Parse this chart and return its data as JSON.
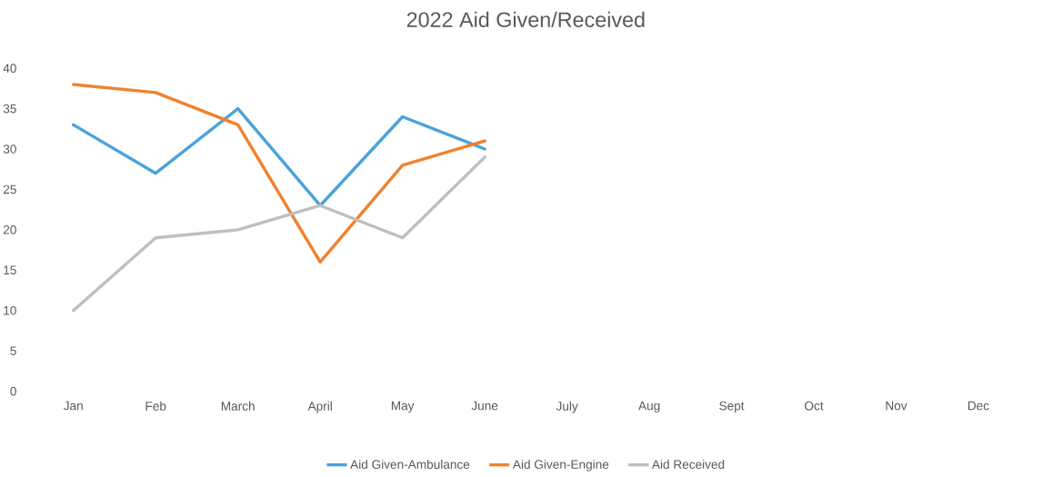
{
  "chart_data": {
    "type": "line",
    "title": "2022 Aid Given/Received",
    "categories": [
      "Jan",
      "Feb",
      "March",
      "April",
      "May",
      "June",
      "July",
      "Aug",
      "Sept",
      "Oct",
      "Nov",
      "Dec"
    ],
    "series": [
      {
        "name": "Aid Given-Ambulance",
        "color": "#4aa3d9",
        "values": [
          33,
          27,
          35,
          23,
          34,
          30,
          null,
          null,
          null,
          null,
          null,
          null
        ]
      },
      {
        "name": "Aid Given-Engine",
        "color": "#f0822e",
        "values": [
          38,
          37,
          33,
          16,
          28,
          31,
          null,
          null,
          null,
          null,
          null,
          null
        ]
      },
      {
        "name": "Aid Received",
        "color": "#bfbfbf",
        "values": [
          10,
          19,
          20,
          23,
          19,
          29,
          null,
          null,
          null,
          null,
          null,
          null
        ]
      }
    ],
    "ylim": [
      0,
      40
    ],
    "yticks": [
      0,
      5,
      10,
      15,
      20,
      25,
      30,
      35,
      40
    ],
    "legend": "bottom",
    "marker": "none",
    "line_style": "solid"
  }
}
